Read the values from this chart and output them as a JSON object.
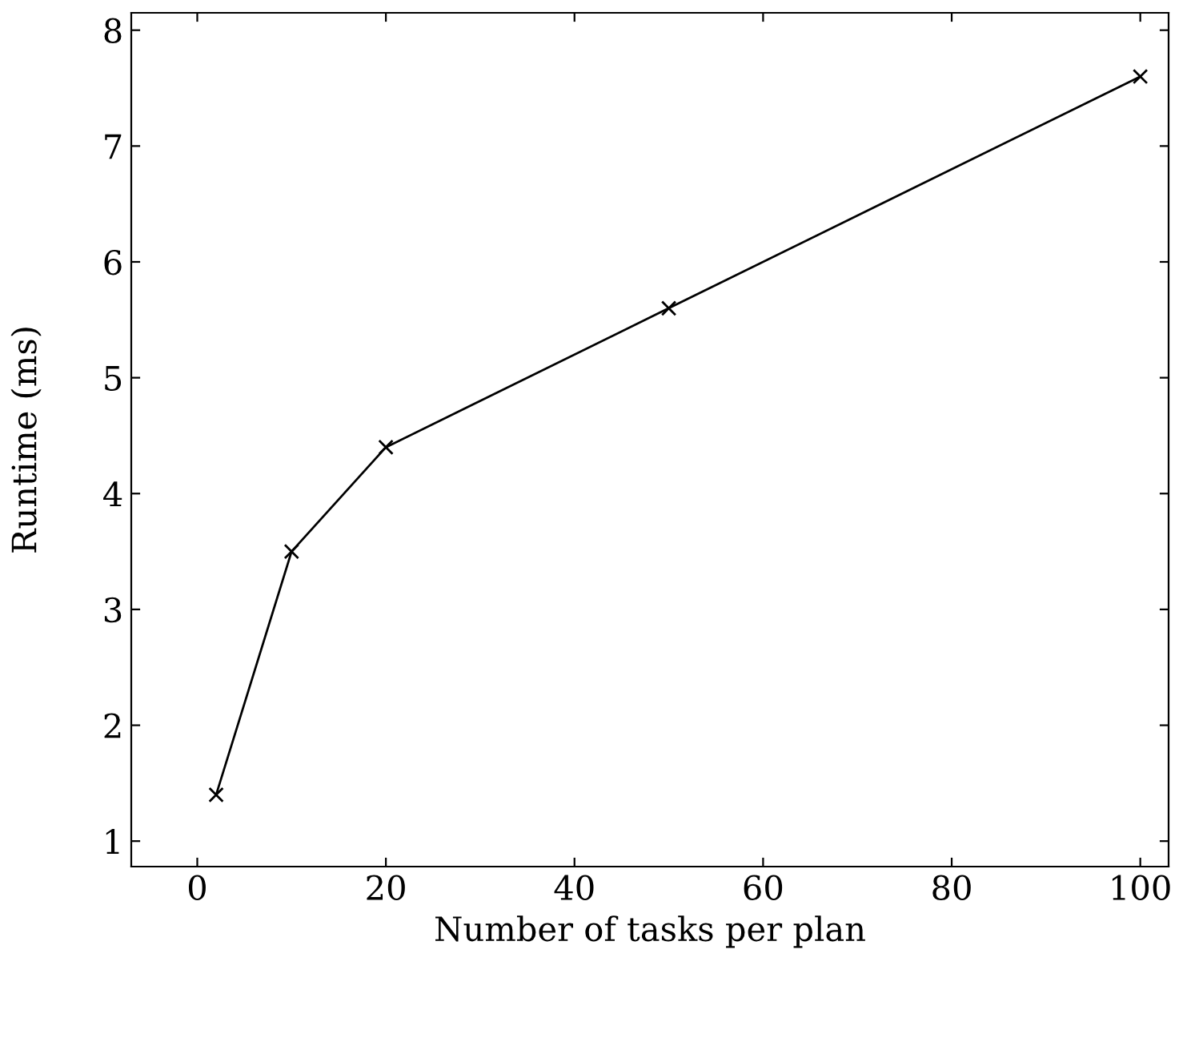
{
  "chart_data": {
    "type": "line",
    "xlabel": "Number of tasks per plan",
    "ylabel": "Runtime (ms)",
    "x": [
      2,
      10,
      20,
      50,
      100
    ],
    "series": [
      {
        "color": "#000000",
        "values": [
          1.4,
          3.5,
          4.4,
          5.6,
          7.6
        ]
      }
    ],
    "marker": "cross",
    "line_style": "solid",
    "grid": false,
    "xlim": [
      -7,
      103
    ],
    "xticks": [
      0,
      20,
      40,
      60,
      80,
      100
    ],
    "ylim": [
      0.78,
      8.15
    ],
    "yticks": [
      1,
      2,
      3,
      4,
      5,
      6,
      7,
      8
    ]
  }
}
